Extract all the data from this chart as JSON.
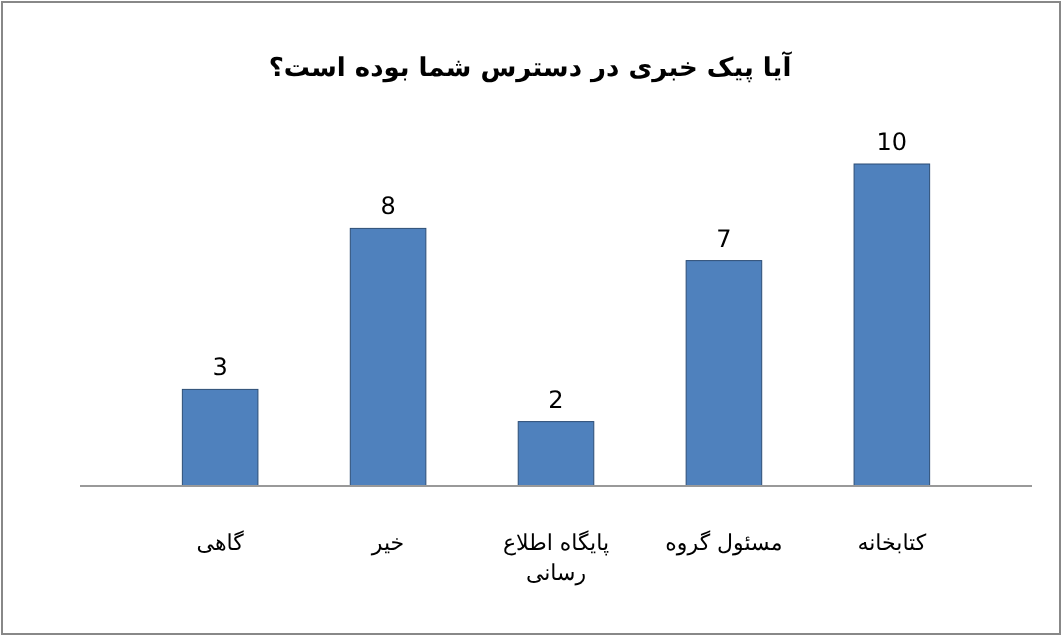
{
  "chart_data": {
    "type": "bar",
    "title": "آیا پیک خبری در دسترس شما بوده است؟",
    "categories": [
      "گاهی",
      "خیر",
      "پایگاه اطلاع رسانی",
      "مسئول گروه",
      "کتابخانه"
    ],
    "values": [
      3,
      8,
      2,
      7,
      10
    ],
    "color": "#4f81bd",
    "data_labels": true
  }
}
